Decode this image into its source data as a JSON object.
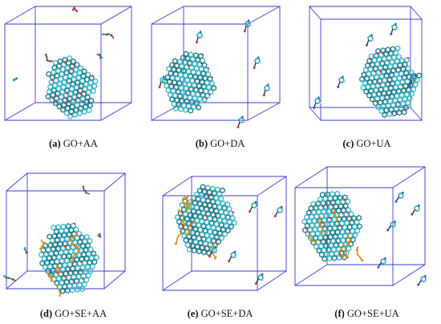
{
  "panels": [
    {
      "letter": "(a)",
      "label": "GO+AA"
    },
    {
      "letter": "(b)",
      "label": "GO+DA"
    },
    {
      "letter": "(c)",
      "label": "GO+UA"
    },
    {
      "letter": "(d)",
      "label": "GO+SE+AA"
    },
    {
      "letter": "(e)",
      "label": "GO+SE+DA"
    },
    {
      "letter": "(f)",
      "label": "GO+SE+UA"
    }
  ],
  "colors": {
    "box": "#3b3bd6",
    "graphene": "#3fb8c8",
    "graphene_dark": "#1d7d8a",
    "carbon": "#2aa7b5",
    "oxygen": "#e0322b",
    "nitrogen": "#3a52e0",
    "hydrogen": "#e8e8e8",
    "surfactant": "#d98a1e",
    "sulfur": "#c8a21a"
  }
}
